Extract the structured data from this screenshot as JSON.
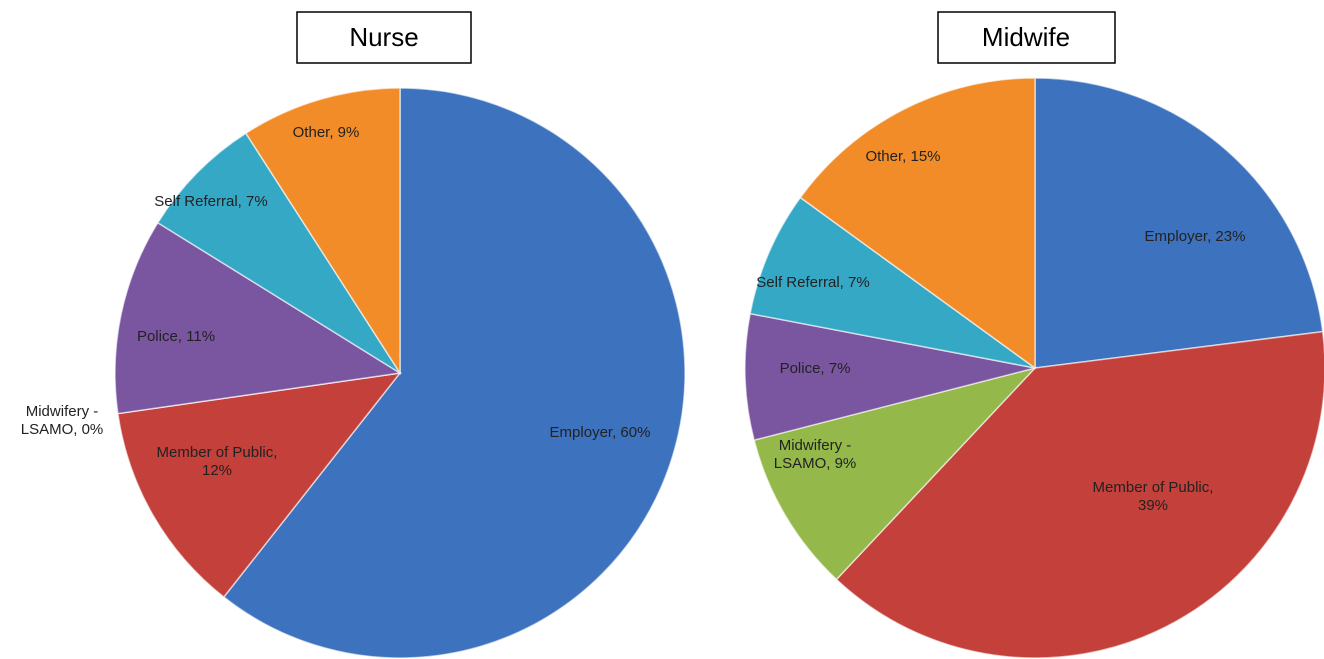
{
  "chart_data": [
    {
      "type": "pie",
      "title": "Nurse",
      "values": [
        60,
        12,
        0,
        11,
        7,
        9
      ],
      "value_labels": [
        "Employer, 60%",
        "Member of Public,\n12%",
        "Midwifery -\nLSAMO, 0%",
        "Police, 11%",
        "Self Referral, 7%",
        "Other, 9%"
      ],
      "colors": [
        "#3d72be",
        "#c4403a",
        "#94b94a",
        "#7a55a0",
        "#35a8c6",
        "#f28c28"
      ]
    },
    {
      "type": "pie",
      "title": "Midwife",
      "values": [
        23,
        39,
        9,
        7,
        7,
        15
      ],
      "value_labels": [
        "Employer, 23%",
        "Member of Public,\n39%",
        "Midwifery -\nLSAMO, 9%",
        "Police, 7%",
        "Self Referral, 7%",
        "Other, 15%"
      ],
      "colors": [
        "#3d72be",
        "#c4403a",
        "#94b94a",
        "#7a55a0",
        "#35a8c6",
        "#f28c28"
      ]
    }
  ]
}
